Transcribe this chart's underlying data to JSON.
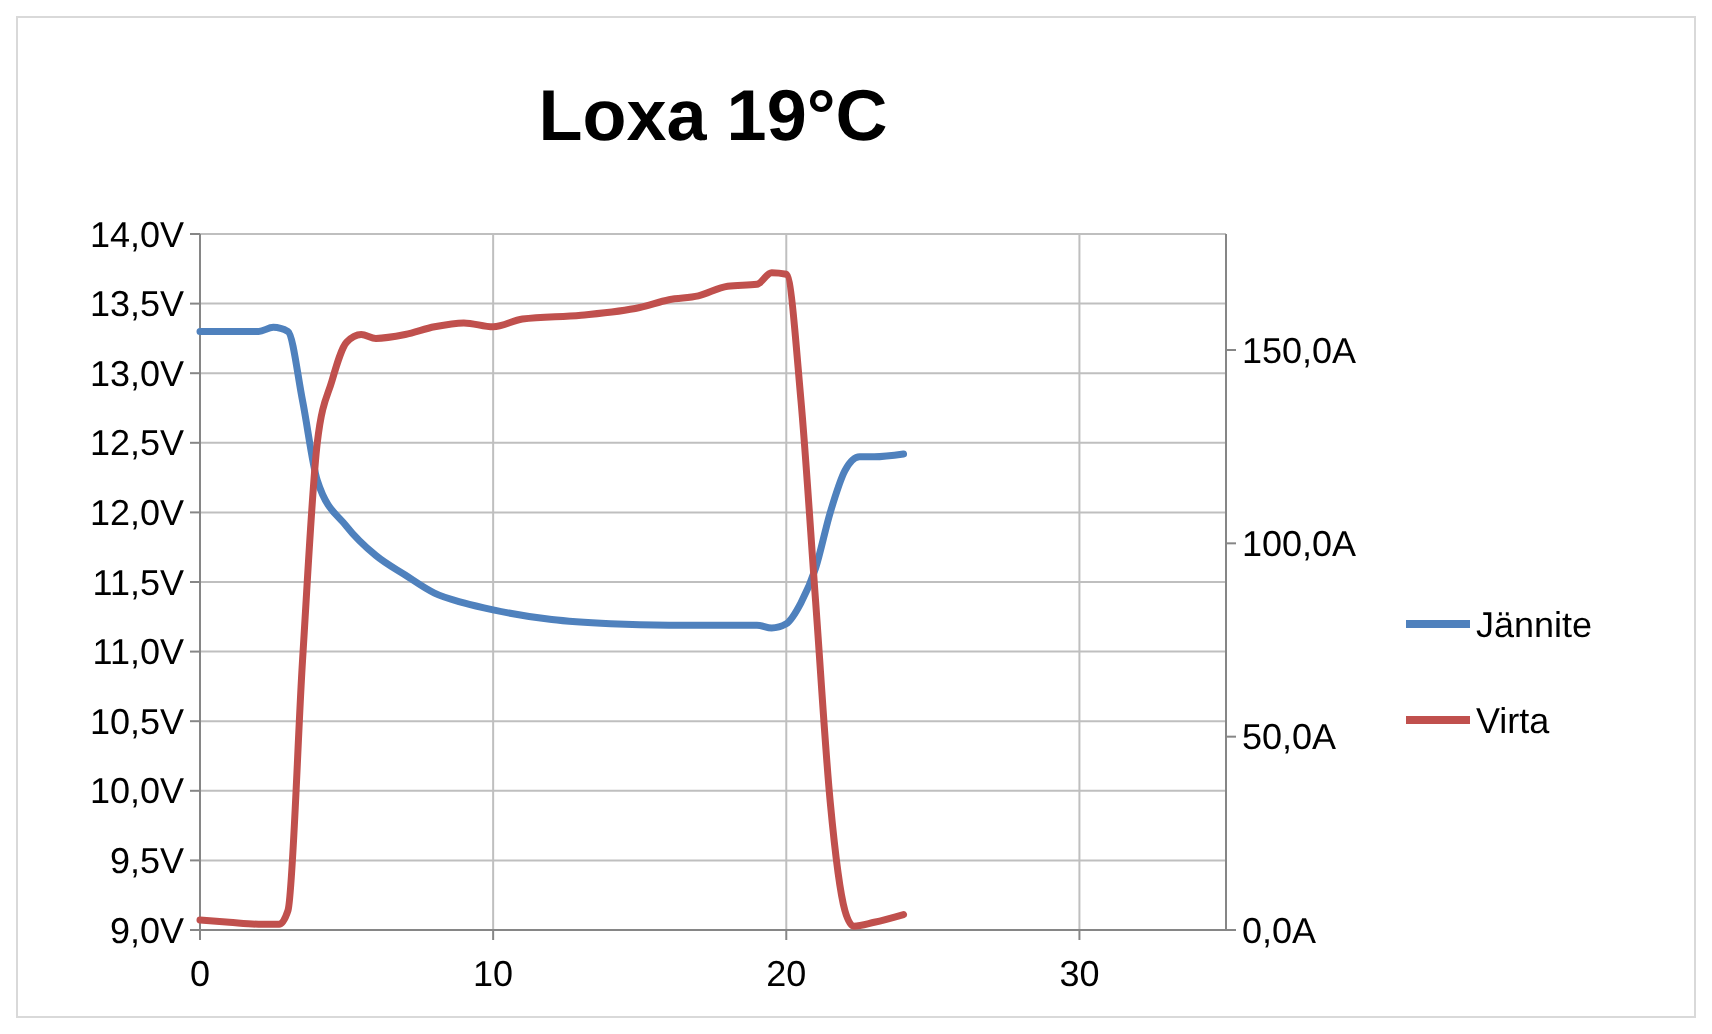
{
  "chart_data": {
    "type": "line",
    "title": "Loxa 19°C",
    "xlim": [
      0,
      35
    ],
    "xticks": [
      0,
      10,
      20,
      30
    ],
    "ylim": [
      9,
      14
    ],
    "yticks": [
      {
        "value": 9,
        "label": "9,0V"
      },
      {
        "value": 9.5,
        "label": "9,5V"
      },
      {
        "value": 10,
        "label": "10,0V"
      },
      {
        "value": 10.5,
        "label": "10,5V"
      },
      {
        "value": 11,
        "label": "11,0V"
      },
      {
        "value": 11.5,
        "label": "11,5V"
      },
      {
        "value": 12,
        "label": "12,0V"
      },
      {
        "value": 12.5,
        "label": "12,5V"
      },
      {
        "value": 13,
        "label": "13,0V"
      },
      {
        "value": 13.5,
        "label": "13,5V"
      },
      {
        "value": 14,
        "label": "14,0V"
      }
    ],
    "y2lim": [
      0,
      180
    ],
    "y2ticks": [
      {
        "value": 0,
        "label": "0,0A"
      },
      {
        "value": 50,
        "label": "50,0A"
      },
      {
        "value": 100,
        "label": "100,0A"
      },
      {
        "value": 150,
        "label": "150,0A"
      }
    ],
    "grid": true,
    "legend": "right",
    "marker": "none",
    "line_style": "solid",
    "series": [
      {
        "name": "Jännite",
        "color": "#4f81bd",
        "x": [
          0,
          1,
          2,
          2.5,
          3,
          3.5,
          4,
          5,
          6,
          7,
          8,
          9,
          10,
          12,
          14,
          16,
          18,
          19,
          19.5,
          20,
          20.5,
          21,
          21.5,
          22,
          22.5,
          23,
          24
        ],
        "values": [
          13.3,
          13.3,
          13.3,
          13.33,
          13.3,
          12.8,
          12.23,
          11.9,
          11.69,
          11.55,
          11.42,
          11.35,
          11.3,
          11.23,
          11.2,
          11.19,
          11.19,
          11.19,
          11.17,
          11.2,
          11.35,
          11.6,
          12.0,
          12.3,
          12.4,
          12.4,
          12.42
        ]
      },
      {
        "name": "Virta",
        "color": "#c0504d",
        "axis": "y2",
        "x": [
          0,
          1,
          2,
          2.7,
          3,
          3.5,
          4,
          4.5,
          5,
          5.5,
          6,
          7,
          8,
          9,
          10,
          11,
          13,
          15,
          16,
          17,
          18,
          19,
          19.5,
          20,
          20.5,
          21,
          21.5,
          22,
          22.3,
          23,
          24
        ],
        "values": [
          2.6,
          2,
          1.5,
          1.5,
          5,
          70,
          126,
          142,
          152,
          154,
          153,
          154,
          156,
          157,
          156,
          158,
          159,
          161,
          163,
          164,
          166.5,
          167,
          170,
          169.6,
          137,
          85,
          33,
          5,
          1,
          2,
          4
        ]
      }
    ]
  }
}
